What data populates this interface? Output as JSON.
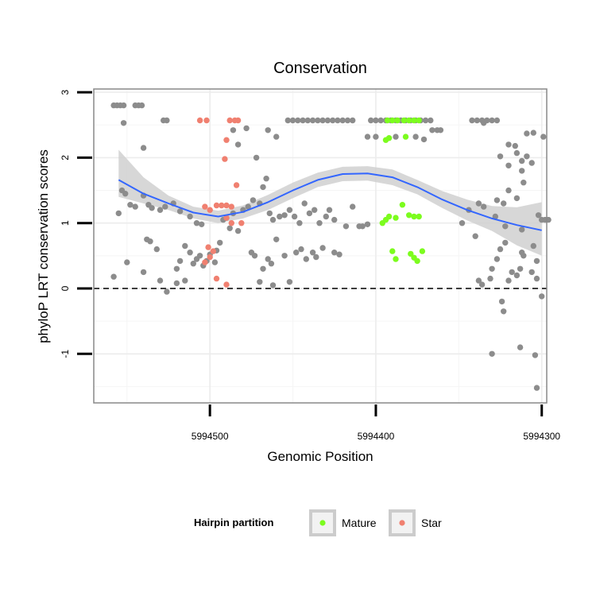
{
  "chart_data": {
    "type": "scatter",
    "title": "Conservation",
    "xlabel": "Genomic Position",
    "ylabel": "phyloP LRT conservation scores",
    "x_reversed": true,
    "xlim": [
      5994570,
      5994297
    ],
    "ylim": [
      -1.75,
      3.05
    ],
    "x_ticks": [
      5994500,
      5994400,
      5994300
    ],
    "x_tick_labels": [
      "5994500",
      "5994400",
      "5994300"
    ],
    "y_ticks": [
      -1,
      0,
      1,
      2,
      3
    ],
    "y_tick_labels": [
      "-1",
      "0",
      "1",
      "2",
      "3"
    ],
    "grid": true,
    "reference_line": {
      "y": 0,
      "style": "dashed"
    },
    "legend": {
      "title": "Hairpin partition",
      "position": "bottom",
      "entries": [
        {
          "label": "Mature",
          "color": "#7CFC1E"
        },
        {
          "label": "Star",
          "color": "#F08070"
        }
      ]
    },
    "colors": {
      "other": "#8c8c8c",
      "smooth": "#3366FF",
      "band": "#d0d0d0"
    },
    "series": [
      {
        "group": "other",
        "points": [
          [
            5994558,
            2.8
          ],
          [
            5994556,
            2.8
          ],
          [
            5994554,
            2.8
          ],
          [
            5994552,
            2.8
          ],
          [
            5994545,
            2.8
          ],
          [
            5994543,
            2.8
          ],
          [
            5994541,
            2.8
          ],
          [
            5994552,
            2.53
          ],
          [
            5994528,
            2.57
          ],
          [
            5994526,
            2.57
          ],
          [
            5994540,
            2.15
          ],
          [
            5994486,
            2.42
          ],
          [
            5994478,
            2.45
          ],
          [
            5994472,
            2.0
          ],
          [
            5994465,
            2.42
          ],
          [
            5994460,
            2.32
          ],
          [
            5994483,
            2.2
          ],
          [
            5994453,
            2.57
          ],
          [
            5994450,
            2.57
          ],
          [
            5994447,
            2.57
          ],
          [
            5994444,
            2.57
          ],
          [
            5994441,
            2.57
          ],
          [
            5994438,
            2.57
          ],
          [
            5994435,
            2.57
          ],
          [
            5994432,
            2.57
          ],
          [
            5994429,
            2.57
          ],
          [
            5994426,
            2.57
          ],
          [
            5994423,
            2.57
          ],
          [
            5994420,
            2.57
          ],
          [
            5994417,
            2.57
          ],
          [
            5994414,
            2.57
          ],
          [
            5994403,
            2.57
          ],
          [
            5994400,
            2.57
          ],
          [
            5994397,
            2.57
          ],
          [
            5994394,
            2.57
          ],
          [
            5994391,
            2.57
          ],
          [
            5994388,
            2.57
          ],
          [
            5994385,
            2.57
          ],
          [
            5994382,
            2.57
          ],
          [
            5994379,
            2.57
          ],
          [
            5994376,
            2.57
          ],
          [
            5994373,
            2.57
          ],
          [
            5994370,
            2.57
          ],
          [
            5994367,
            2.57
          ],
          [
            5994366,
            2.42
          ],
          [
            5994363,
            2.42
          ],
          [
            5994361,
            2.42
          ],
          [
            5994405,
            2.32
          ],
          [
            5994400,
            2.32
          ],
          [
            5994388,
            2.32
          ],
          [
            5994376,
            2.32
          ],
          [
            5994371,
            2.28
          ],
          [
            5994342,
            2.57
          ],
          [
            5994339,
            2.57
          ],
          [
            5994336,
            2.57
          ],
          [
            5994333,
            2.57
          ],
          [
            5994330,
            2.57
          ],
          [
            5994327,
            2.57
          ],
          [
            5994335,
            2.53
          ],
          [
            5994316,
            2.18
          ],
          [
            5994320,
            1.88
          ],
          [
            5994325,
            2.02
          ],
          [
            5994305,
            2.38
          ],
          [
            5994309,
            2.37
          ],
          [
            5994299,
            2.32
          ],
          [
            5994320,
            2.2
          ],
          [
            5994315,
            2.07
          ],
          [
            5994312,
            1.95
          ],
          [
            5994309,
            2.02
          ],
          [
            5994306,
            1.92
          ],
          [
            5994312,
            1.8
          ],
          [
            5994311,
            1.62
          ],
          [
            5994320,
            1.5
          ],
          [
            5994323,
            1.3
          ],
          [
            5994315,
            1.38
          ],
          [
            5994328,
            1.1
          ],
          [
            5994327,
            1.35
          ],
          [
            5994322,
            0.95
          ],
          [
            5994312,
            0.9
          ],
          [
            5994302,
            1.12
          ],
          [
            5994300,
            1.05
          ],
          [
            5994298,
            1.05
          ],
          [
            5994296,
            1.05
          ],
          [
            5994312,
            0.55
          ],
          [
            5994311,
            0.5
          ],
          [
            5994305,
            0.65
          ],
          [
            5994303,
            0.42
          ],
          [
            5994313,
            0.3
          ],
          [
            5994315,
            0.2
          ],
          [
            5994318,
            0.25
          ],
          [
            5994320,
            0.12
          ],
          [
            5994325,
            0.6
          ],
          [
            5994322,
            0.7
          ],
          [
            5994327,
            0.45
          ],
          [
            5994330,
            0.3
          ],
          [
            5994331,
            0.15
          ],
          [
            5994338,
            0.12
          ],
          [
            5994336,
            0.06
          ],
          [
            5994306,
            0.25
          ],
          [
            5994303,
            0.15
          ],
          [
            5994300,
            -0.12
          ],
          [
            5994324,
            -0.2
          ],
          [
            5994323,
            -0.35
          ],
          [
            5994330,
            -1.0
          ],
          [
            5994313,
            -0.9
          ],
          [
            5994304,
            -1.02
          ],
          [
            5994303,
            -1.52
          ],
          [
            5994340,
            0.8
          ],
          [
            5994344,
            1.2
          ],
          [
            5994338,
            1.3
          ],
          [
            5994348,
            1.0
          ],
          [
            5994335,
            1.25
          ],
          [
            5994553,
            1.5
          ],
          [
            5994551,
            1.45
          ],
          [
            5994548,
            1.28
          ],
          [
            5994545,
            1.25
          ],
          [
            5994540,
            1.42
          ],
          [
            5994537,
            1.28
          ],
          [
            5994535,
            1.23
          ],
          [
            5994530,
            1.2
          ],
          [
            5994527,
            1.25
          ],
          [
            5994522,
            1.3
          ],
          [
            5994518,
            1.18
          ],
          [
            5994512,
            1.1
          ],
          [
            5994508,
            1.0
          ],
          [
            5994505,
            0.98
          ],
          [
            5994555,
            1.15
          ],
          [
            5994550,
            0.4
          ],
          [
            5994558,
            0.18
          ],
          [
            5994538,
            0.75
          ],
          [
            5994536,
            0.72
          ],
          [
            5994532,
            0.6
          ],
          [
            5994540,
            0.25
          ],
          [
            5994530,
            0.12
          ],
          [
            5994526,
            -0.05
          ],
          [
            5994520,
            0.3
          ],
          [
            5994518,
            0.42
          ],
          [
            5994515,
            0.12
          ],
          [
            5994512,
            0.55
          ],
          [
            5994510,
            0.38
          ],
          [
            5994508,
            0.45
          ],
          [
            5994506,
            0.5
          ],
          [
            5994504,
            0.35
          ],
          [
            5994502,
            0.42
          ],
          [
            5994500,
            0.52
          ],
          [
            5994520,
            0.08
          ],
          [
            5994515,
            0.65
          ],
          [
            5994497,
            0.4
          ],
          [
            5994496,
            0.58
          ],
          [
            5994494,
            0.7
          ],
          [
            5994492,
            1.05
          ],
          [
            5994490,
            1.08
          ],
          [
            5994488,
            0.92
          ],
          [
            5994486,
            1.15
          ],
          [
            5994483,
            0.88
          ],
          [
            5994480,
            1.2
          ],
          [
            5994477,
            1.25
          ],
          [
            5994474,
            1.35
          ],
          [
            5994470,
            1.3
          ],
          [
            5994468,
            1.55
          ],
          [
            5994466,
            1.68
          ],
          [
            5994464,
            1.15
          ],
          [
            5994462,
            1.05
          ],
          [
            5994458,
            1.1
          ],
          [
            5994455,
            1.12
          ],
          [
            5994452,
            1.2
          ],
          [
            5994449,
            1.1
          ],
          [
            5994446,
            1.0
          ],
          [
            5994443,
            1.3
          ],
          [
            5994440,
            1.15
          ],
          [
            5994437,
            1.2
          ],
          [
            5994434,
            1.0
          ],
          [
            5994430,
            1.1
          ],
          [
            5994428,
            1.2
          ],
          [
            5994425,
            1.05
          ],
          [
            5994418,
            0.95
          ],
          [
            5994414,
            1.25
          ],
          [
            5994408,
            0.95
          ],
          [
            5994405,
            0.98
          ],
          [
            5994470,
            0.1
          ],
          [
            5994475,
            0.55
          ],
          [
            5994473,
            0.5
          ],
          [
            5994465,
            0.45
          ],
          [
            5994460,
            0.75
          ],
          [
            5994455,
            0.5
          ],
          [
            5994452,
            0.1
          ],
          [
            5994448,
            0.55
          ],
          [
            5994445,
            0.6
          ],
          [
            5994442,
            0.45
          ],
          [
            5994438,
            0.55
          ],
          [
            5994436,
            0.48
          ],
          [
            5994432,
            0.62
          ],
          [
            5994425,
            0.55
          ],
          [
            5994422,
            0.52
          ],
          [
            5994410,
            0.95
          ],
          [
            5994468,
            0.3
          ],
          [
            5994463,
            0.38
          ],
          [
            5994462,
            0.05
          ]
        ]
      },
      {
        "group": "Mature",
        "points": [
          [
            5994393,
            2.57
          ],
          [
            5994390,
            2.57
          ],
          [
            5994387,
            2.57
          ],
          [
            5994383,
            2.57
          ],
          [
            5994380,
            2.57
          ],
          [
            5994377,
            2.57
          ],
          [
            5994374,
            2.57
          ],
          [
            5994394,
            2.27
          ],
          [
            5994392,
            2.3
          ],
          [
            5994382,
            2.32
          ],
          [
            5994394,
            1.05
          ],
          [
            5994392,
            1.1
          ],
          [
            5994388,
            1.08
          ],
          [
            5994384,
            1.28
          ],
          [
            5994380,
            1.12
          ],
          [
            5994377,
            1.1
          ],
          [
            5994374,
            1.1
          ],
          [
            5994390,
            0.57
          ],
          [
            5994388,
            0.45
          ],
          [
            5994379,
            0.53
          ],
          [
            5994377,
            0.47
          ],
          [
            5994375,
            0.42
          ],
          [
            5994372,
            0.57
          ],
          [
            5994396,
            1.0
          ]
        ]
      },
      {
        "group": "Star",
        "points": [
          [
            5994506,
            2.57
          ],
          [
            5994502,
            2.57
          ],
          [
            5994488,
            2.57
          ],
          [
            5994485,
            2.57
          ],
          [
            5994483,
            2.57
          ],
          [
            5994490,
            2.27
          ],
          [
            5994491,
            1.98
          ],
          [
            5994484,
            1.58
          ],
          [
            5994503,
            1.25
          ],
          [
            5994500,
            1.2
          ],
          [
            5994496,
            1.27
          ],
          [
            5994493,
            1.27
          ],
          [
            5994490,
            1.27
          ],
          [
            5994487,
            1.25
          ],
          [
            5994490,
            1.08
          ],
          [
            5994487,
            1.0
          ],
          [
            5994481,
            1.0
          ],
          [
            5994501,
            0.63
          ],
          [
            5994498,
            0.57
          ],
          [
            5994500,
            0.48
          ],
          [
            5994503,
            0.4
          ],
          [
            5994496,
            0.15
          ],
          [
            5994490,
            0.06
          ]
        ]
      }
    ],
    "smooth": {
      "x": [
        5994555,
        5994540,
        5994525,
        5994510,
        5994495,
        5994480,
        5994465,
        5994450,
        5994435,
        5994420,
        5994405,
        5994390,
        5994375,
        5994360,
        5994345,
        5994330,
        5994315,
        5994300
      ],
      "y": [
        1.66,
        1.45,
        1.3,
        1.16,
        1.1,
        1.17,
        1.32,
        1.5,
        1.66,
        1.75,
        1.76,
        1.7,
        1.55,
        1.36,
        1.2,
        1.07,
        0.97,
        0.89
      ],
      "lower": [
        1.4,
        1.3,
        1.2,
        1.07,
        1.0,
        1.07,
        1.2,
        1.38,
        1.55,
        1.64,
        1.65,
        1.58,
        1.44,
        1.23,
        1.04,
        0.88,
        0.66,
        0.5
      ],
      "upper": [
        2.12,
        1.7,
        1.42,
        1.25,
        1.19,
        1.27,
        1.43,
        1.62,
        1.77,
        1.86,
        1.87,
        1.82,
        1.66,
        1.49,
        1.36,
        1.26,
        1.24,
        1.32
      ]
    }
  }
}
